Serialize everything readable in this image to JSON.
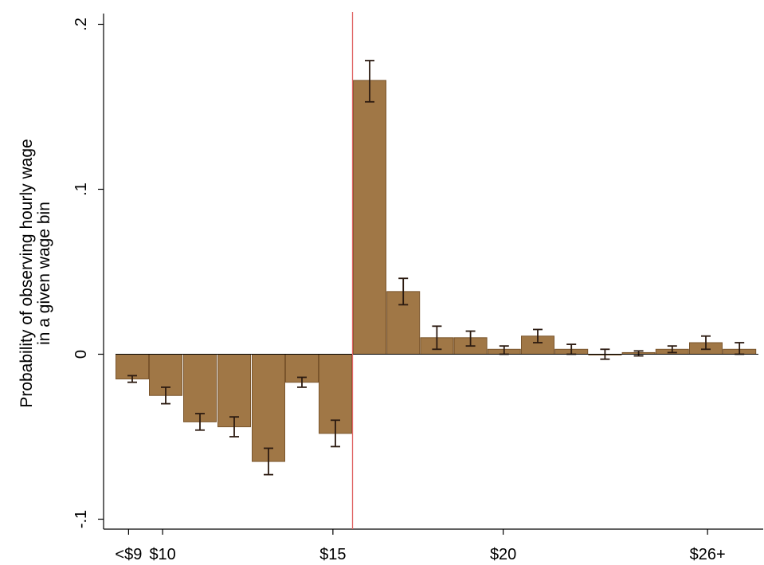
{
  "chart_data": {
    "type": "bar",
    "title": "",
    "ylabel_lines": [
      "Probability of observing hourly wage",
      "in a given wage bin"
    ],
    "xlabel": "",
    "ylim": [
      -0.1,
      0.2
    ],
    "xlim": [
      8.5,
      26.7
    ],
    "y_ticks": [
      {
        "value": -0.1,
        "label": "-.1"
      },
      {
        "value": 0,
        "label": "0"
      },
      {
        "value": 0.1,
        "label": ".1"
      },
      {
        "value": 0.2,
        "label": ".2"
      }
    ],
    "x_ticks": [
      {
        "value": 9,
        "label": "<$9"
      },
      {
        "value": 10,
        "label": "$10"
      },
      {
        "value": 15,
        "label": "$15"
      },
      {
        "value": 20,
        "label": "$20"
      },
      {
        "value": 26,
        "label": "$26+"
      }
    ],
    "reference_line": {
      "x": 14.5,
      "color": "#e06666"
    },
    "grid": false,
    "bar_color": "#a07746",
    "bar_edge_color": "#7a552c",
    "errorbar_color": "#2b1a10",
    "series": [
      {
        "bars": [
          {
            "x": 9.0,
            "value": -0.015,
            "ci": [
              -0.017,
              -0.013
            ]
          },
          {
            "x": 9.5,
            "value": -0.025,
            "ci": [
              -0.03,
              -0.02
            ]
          },
          {
            "x": 10.0,
            "value": -0.041,
            "ci": [
              -0.046,
              -0.036
            ]
          },
          {
            "x": 10.5,
            "value": -0.044,
            "ci": [
              -0.05,
              -0.038
            ]
          },
          {
            "x": 11.5,
            "value": -0.065,
            "ci": [
              -0.073,
              -0.057
            ]
          },
          {
            "x": 12.5,
            "value": -0.017,
            "ci": [
              -0.02,
              -0.014
            ]
          },
          {
            "x": 13.5,
            "value": -0.048,
            "ci": [
              -0.056,
              -0.04
            ]
          },
          {
            "x": 15.0,
            "value": 0.166,
            "ci": [
              0.153,
              0.178
            ]
          },
          {
            "x": 16.0,
            "value": 0.038,
            "ci": [
              0.03,
              0.046
            ]
          },
          {
            "x": 17.0,
            "value": 0.01,
            "ci": [
              0.003,
              0.017
            ]
          },
          {
            "x": 18.0,
            "value": 0.01,
            "ci": [
              0.005,
              0.014
            ]
          },
          {
            "x": 19.0,
            "value": 0.003,
            "ci": [
              0.0,
              0.005
            ]
          },
          {
            "x": 20.0,
            "value": 0.011,
            "ci": [
              0.007,
              0.015
            ]
          },
          {
            "x": 21.0,
            "value": 0.003,
            "ci": [
              0.0,
              0.006
            ]
          },
          {
            "x": 22.0,
            "value": 0.0,
            "ci": [
              -0.003,
              0.003
            ]
          },
          {
            "x": 23.0,
            "value": 0.001,
            "ci": [
              -0.001,
              0.002
            ]
          },
          {
            "x": 24.0,
            "value": 0.003,
            "ci": [
              0.001,
              0.005
            ]
          },
          {
            "x": 25.0,
            "value": 0.007,
            "ci": [
              0.003,
              0.011
            ]
          },
          {
            "x": 26.0,
            "value": 0.003,
            "ci": [
              0.0,
              0.007
            ]
          }
        ]
      }
    ]
  }
}
